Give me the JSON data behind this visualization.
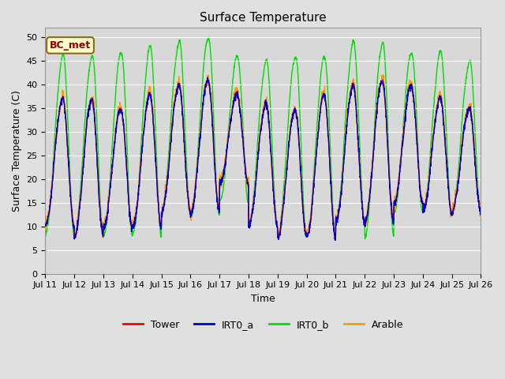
{
  "title": "Surface Temperature",
  "xlabel": "Time",
  "ylabel": "Surface Temperature (C)",
  "ylim": [
    0,
    52
  ],
  "yticks": [
    0,
    5,
    10,
    15,
    20,
    25,
    30,
    35,
    40,
    45,
    50
  ],
  "bg_color": "#e0e0e0",
  "plot_bg_color": "#d8d8d8",
  "grid_color": "#ffffff",
  "annotation_text": "BC_met",
  "annotation_bg": "#ffffcc",
  "annotation_border": "#8b6914",
  "colors": {
    "Tower": "#ff0000",
    "IRT0_a": "#0000cc",
    "IRT0_b": "#00dd00",
    "Arable": "#ff9900"
  },
  "linewidth": 1.0,
  "n_days": 15,
  "start_day": 11,
  "figsize": [
    6.4,
    4.8
  ],
  "dpi": 100
}
